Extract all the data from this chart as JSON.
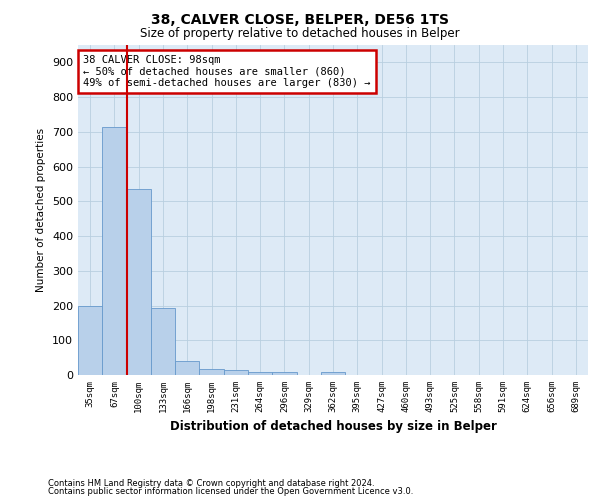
{
  "title1": "38, CALVER CLOSE, BELPER, DE56 1TS",
  "title2": "Size of property relative to detached houses in Belper",
  "xlabel": "Distribution of detached houses by size in Belper",
  "ylabel": "Number of detached properties",
  "categories": [
    "35sqm",
    "67sqm",
    "100sqm",
    "133sqm",
    "166sqm",
    "198sqm",
    "231sqm",
    "264sqm",
    "296sqm",
    "329sqm",
    "362sqm",
    "395sqm",
    "427sqm",
    "460sqm",
    "493sqm",
    "525sqm",
    "558sqm",
    "591sqm",
    "624sqm",
    "656sqm",
    "689sqm"
  ],
  "values": [
    200,
    715,
    535,
    193,
    40,
    16,
    13,
    10,
    10,
    0,
    10,
    0,
    0,
    0,
    0,
    0,
    0,
    0,
    0,
    0,
    0
  ],
  "bar_color": "#b8d0ea",
  "bar_edge_color": "#6699cc",
  "property_line_x": 1.5,
  "property_line_color": "#cc0000",
  "annotation_text": "38 CALVER CLOSE: 98sqm\n← 50% of detached houses are smaller (860)\n49% of semi-detached houses are larger (830) →",
  "annotation_box_color": "#cc0000",
  "ylim": [
    0,
    950
  ],
  "yticks": [
    0,
    100,
    200,
    300,
    400,
    500,
    600,
    700,
    800,
    900
  ],
  "footer1": "Contains HM Land Registry data © Crown copyright and database right 2024.",
  "footer2": "Contains public sector information licensed under the Open Government Licence v3.0.",
  "background_color": "#ffffff",
  "plot_bg_color": "#ddeaf6",
  "grid_color": "#b8cfe0"
}
